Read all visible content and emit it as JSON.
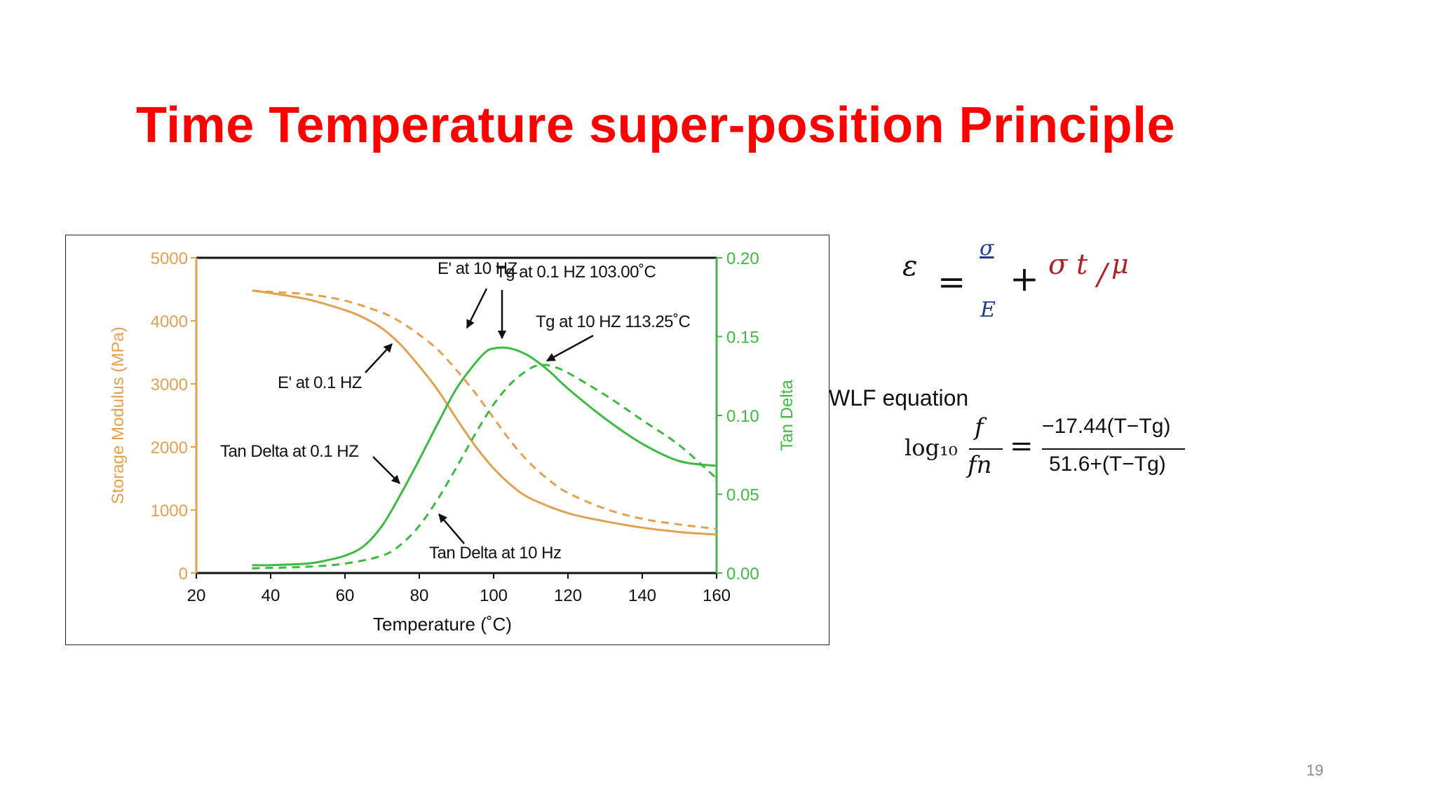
{
  "slide": {
    "title": "Time Temperature super-position Principle",
    "page_number": "19"
  },
  "equation1": {
    "epsilon": "ε",
    "equals": "=",
    "sigma": "σ",
    "E": "E",
    "plus": "+",
    "sigma_t": "σ t",
    "slash": "/",
    "mu": "μ"
  },
  "wlf": {
    "label": "WLF equation",
    "log": "log₁₀",
    "f": "f",
    "fn": "fn",
    "equals": "=",
    "numerator": "−17.44(T−Tg)",
    "denominator": "51.6+(T−Tg)"
  },
  "colors": {
    "title": "#ff0000",
    "storage_modulus": "#e3a04f",
    "tan_delta": "#3dba41",
    "eq_blue": "#1f3a93",
    "eq_red": "#b22222"
  },
  "chart_data": {
    "type": "line",
    "xlabel": "Temperature (˚C)",
    "ylabel": "Storage Modulus (MPa)",
    "y2label": "Tan Delta",
    "xlim": [
      20,
      160
    ],
    "ylim": [
      0,
      5000
    ],
    "y2lim": [
      0,
      0.2
    ],
    "xticks": [
      "20",
      "40",
      "60",
      "80",
      "100",
      "120",
      "140",
      "160"
    ],
    "yticks": [
      "0",
      "1000",
      "2000",
      "3000",
      "4000",
      "5000"
    ],
    "y2ticks": [
      "0.00",
      "0.05",
      "0.10",
      "0.15",
      "0.20"
    ],
    "series": [
      {
        "name": "E' at 0.1 HZ",
        "axis": "left",
        "style": "solid",
        "x": [
          35,
          40,
          50,
          60,
          65,
          70,
          75,
          80,
          85,
          90,
          95,
          100,
          105,
          110,
          120,
          130,
          140,
          150,
          160
        ],
        "y": [
          4480,
          4440,
          4340,
          4170,
          4050,
          3880,
          3620,
          3280,
          2900,
          2450,
          2020,
          1660,
          1380,
          1180,
          950,
          820,
          720,
          650,
          610
        ]
      },
      {
        "name": "E' at 10 HZ",
        "axis": "left",
        "style": "dashed",
        "x": [
          35,
          40,
          50,
          60,
          70,
          75,
          80,
          85,
          90,
          95,
          100,
          105,
          110,
          115,
          120,
          130,
          140,
          150,
          160
        ],
        "y": [
          4480,
          4460,
          4420,
          4320,
          4130,
          3980,
          3780,
          3540,
          3220,
          2860,
          2460,
          2060,
          1730,
          1470,
          1270,
          1020,
          860,
          770,
          700
        ]
      },
      {
        "name": "Tan Delta at 0.1 HZ",
        "axis": "right",
        "style": "solid",
        "x": [
          35,
          40,
          50,
          55,
          60,
          65,
          70,
          75,
          80,
          85,
          90,
          95,
          98,
          100,
          103,
          106,
          110,
          115,
          120,
          130,
          140,
          150,
          160
        ],
        "y": [
          0.005,
          0.005,
          0.006,
          0.008,
          0.011,
          0.017,
          0.03,
          0.05,
          0.072,
          0.095,
          0.117,
          0.133,
          0.1405,
          0.1425,
          0.143,
          0.1415,
          0.137,
          0.128,
          0.117,
          0.098,
          0.082,
          0.071,
          0.068
        ]
      },
      {
        "name": "Tan Delta at 10 Hz",
        "axis": "right",
        "style": "dashed",
        "x": [
          35,
          50,
          60,
          70,
          75,
          80,
          85,
          90,
          95,
          100,
          105,
          110,
          113.25,
          116,
          120,
          130,
          140,
          150,
          160
        ],
        "y": [
          0.003,
          0.004,
          0.006,
          0.011,
          0.018,
          0.03,
          0.047,
          0.067,
          0.088,
          0.107,
          0.121,
          0.13,
          0.132,
          0.131,
          0.127,
          0.113,
          0.097,
          0.081,
          0.06
        ]
      }
    ],
    "annotations": [
      "E' at 10 HZ",
      "Tg at 0.1 HZ 103.00˚C",
      "Tg at 10 HZ 113.25˚C",
      "E' at 0.1 HZ",
      "Tan Delta at 0.1 HZ",
      "Tan Delta at 10 Hz"
    ]
  }
}
